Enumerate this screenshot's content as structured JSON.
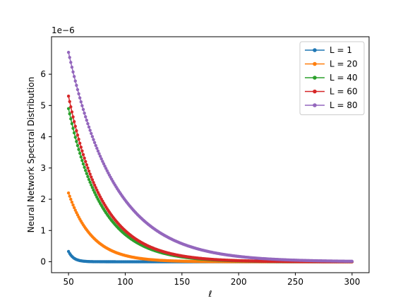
{
  "chart_data": {
    "type": "line",
    "title": "",
    "xlabel": "ℓ",
    "ylabel": "Neural Network Spectral Distribution",
    "y_offset_label": "1e−6",
    "xlim": [
      35,
      315
    ],
    "ylim": [
      -0.35,
      7.2
    ],
    "xticks": [
      50,
      100,
      150,
      200,
      250,
      300
    ],
    "yticks": [
      0,
      1,
      2,
      3,
      4,
      5,
      6
    ],
    "grid": false,
    "legend_position": "top-right",
    "x_range": [
      50,
      300
    ],
    "series": [
      {
        "name": "L = 1",
        "color": "#1f77b4",
        "peak": 0.33,
        "decay": 0.22
      },
      {
        "name": "L = 20",
        "color": "#ff7f0e",
        "peak": 2.2,
        "decay": 0.048
      },
      {
        "name": "L = 40",
        "color": "#2ca02c",
        "peak": 4.9,
        "decay": 0.0345
      },
      {
        "name": "L = 60",
        "color": "#d62728",
        "peak": 5.3,
        "decay": 0.0335
      },
      {
        "name": "L = 80",
        "color": "#9467bd",
        "peak": 6.7,
        "decay": 0.0245
      }
    ]
  }
}
